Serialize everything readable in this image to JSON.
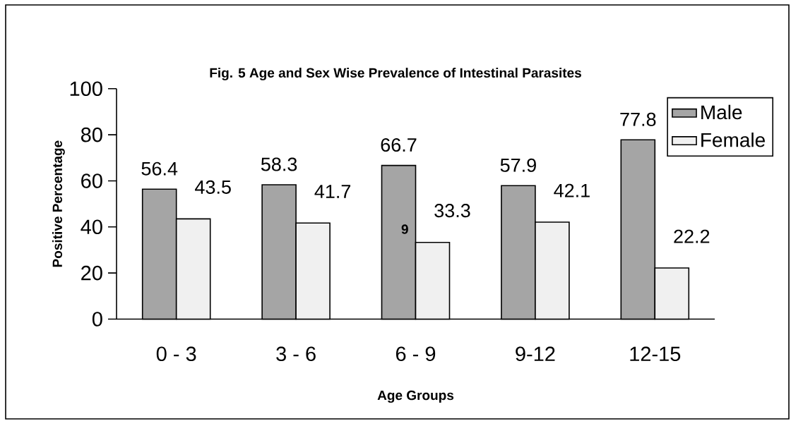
{
  "chart_data": {
    "type": "bar",
    "title": "Fig. 5 Age and Sex Wise Prevalence of Intestinal Parasites",
    "xlabel": "Age Groups",
    "ylabel": "Positive Percentage",
    "categories": [
      "0 - 3",
      "3 - 6",
      "6 - 9",
      "9-12",
      "12-15"
    ],
    "series": [
      {
        "name": "Male",
        "color": "#a5a5a5",
        "values": [
          56.4,
          58.3,
          66.7,
          57.9,
          77.8
        ]
      },
      {
        "name": "Female",
        "color": "#f0f0f0",
        "values": [
          43.5,
          41.7,
          33.3,
          42.1,
          22.2
        ]
      }
    ],
    "ylim": [
      0,
      100
    ],
    "yticks": [
      0,
      20,
      40,
      60,
      80,
      100
    ],
    "data_labels": true,
    "legend": "top right",
    "grid": false,
    "annotations": [
      "9"
    ]
  }
}
